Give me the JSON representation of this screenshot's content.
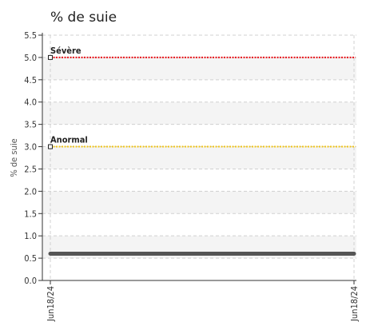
{
  "chart_data": {
    "type": "line",
    "title": "% de suie",
    "ylabel": "% de suie",
    "xlabel": "",
    "ylim": [
      0,
      5.5
    ],
    "y_ticks": [
      "0.0",
      "0.5",
      "1.0",
      "1.5",
      "2.0",
      "2.5",
      "3.0",
      "3.5",
      "4.0",
      "4.5",
      "5.0",
      "5.5"
    ],
    "x_ticks": [
      "Jun18/24",
      "Jun18/24"
    ],
    "grid": true,
    "series": [
      {
        "values": [
          0.6,
          0.6
        ],
        "color": "#555555"
      }
    ],
    "thresholds": [
      {
        "label": "Sévère",
        "value": 5.0,
        "color": "#e8141b"
      },
      {
        "label": "Anormal",
        "value": 3.0,
        "color": "#f0c419"
      }
    ],
    "band_colors": [
      "#f4f4f4",
      "#ffffff"
    ]
  }
}
